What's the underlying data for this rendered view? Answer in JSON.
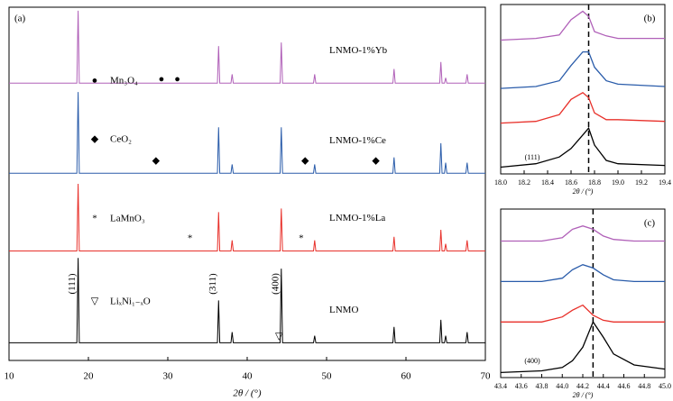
{
  "chart_data": [
    {
      "type": "line",
      "panel_label": "(a)",
      "xlabel": "2θ / (°)",
      "xlim": [
        10,
        70
      ],
      "xticks": [
        10,
        20,
        30,
        40,
        50,
        60,
        70
      ],
      "ylim": [
        0,
        100
      ],
      "x": [
        10,
        18.55,
        18.7,
        18.85,
        36.25,
        36.4,
        36.55,
        37.95,
        38.1,
        38.25,
        44.15,
        44.3,
        44.45,
        48.35,
        48.5,
        48.65,
        58.35,
        58.5,
        58.65,
        64.25,
        64.4,
        64.55,
        64.85,
        65,
        65.15,
        67.55,
        67.7,
        67.85,
        70
      ],
      "series": [
        {
          "name": "LNMO-1%Yb",
          "color": "#b060b8",
          "values": [
            78.5,
            78.5,
            99,
            78.5,
            78.5,
            89,
            78.5,
            78.5,
            81,
            78.5,
            78.5,
            90,
            78.5,
            78.5,
            81,
            78.5,
            78.5,
            82.5,
            78.5,
            78.5,
            84.5,
            78.5,
            78.5,
            80,
            78.5,
            78.5,
            81,
            78.5,
            78.5
          ]
        },
        {
          "name": "LNMO-1%Ce",
          "color": "#2a5caa",
          "values": [
            53,
            53,
            76,
            53,
            53,
            66,
            53,
            53,
            55.5,
            53,
            53,
            66,
            53,
            53,
            55.5,
            53,
            53,
            57.5,
            53,
            53,
            61.5,
            53,
            53,
            56,
            53,
            53,
            56,
            53,
            53
          ]
        },
        {
          "name": "LNMO-1%La",
          "color": "#e8302a",
          "values": [
            31,
            31,
            50,
            31,
            31,
            42,
            31,
            31,
            34,
            31,
            31,
            43,
            31,
            31,
            34,
            31,
            31,
            35,
            31,
            31,
            37,
            31,
            31,
            33,
            31,
            31,
            34,
            31,
            31
          ]
        },
        {
          "name": "LNMO",
          "color": "#000000",
          "values": [
            5,
            5,
            29,
            5,
            5,
            17,
            5,
            5,
            8,
            5,
            5,
            26,
            5,
            5,
            7,
            5,
            5,
            9.5,
            5,
            5,
            11.5,
            5,
            5,
            7,
            5,
            5,
            8,
            5,
            5
          ]
        }
      ],
      "phases": [
        {
          "symbol": "●",
          "name": "Mn₃O₄",
          "positions": [
            29.2,
            31.2
          ],
          "y": 79.5
        },
        {
          "symbol": "◆",
          "name": "CeO₂",
          "positions": [
            28.5,
            47.3,
            56.2
          ],
          "y": 56.4
        },
        {
          "symbol": "*",
          "name": "LaMnO₃",
          "positions": [
            32.8,
            46.8
          ],
          "y": 34.4
        },
        {
          "symbol": "▽",
          "name": "LiₓNi₁₋ₓO",
          "positions": [
            44
          ],
          "y": 6.7
        }
      ],
      "peak_labels": [
        {
          "text": "(111)",
          "x": 18.7
        },
        {
          "text": "(311)",
          "x": 36.4
        },
        {
          "text": "(400)",
          "x": 44.3
        }
      ]
    },
    {
      "type": "line",
      "panel_label": "(b)",
      "peak_label": "(111)",
      "xlabel": "2θ / (°)",
      "xlim": [
        18,
        19.4
      ],
      "xticks": [
        {
          "value": 18,
          "label": "18.0"
        },
        18.2,
        18.4,
        18.6,
        18.8,
        {
          "value": 19,
          "label": "19.0"
        },
        19.2,
        19.4
      ],
      "ylim": [
        0,
        100
      ],
      "reference_x": 18.75,
      "x": [
        18,
        18.3,
        18.5,
        18.6,
        18.7,
        18.75,
        18.8,
        18.9,
        19,
        19.4
      ],
      "series": [
        {
          "color": "#b060b8",
          "values": [
            79,
            80,
            82,
            91,
            96,
            93,
            84,
            81.5,
            80,
            80
          ]
        },
        {
          "color": "#2a5caa",
          "values": [
            50.5,
            51.6,
            55,
            64,
            72,
            72,
            63,
            55,
            53,
            51.6
          ]
        },
        {
          "color": "#e8302a",
          "values": [
            30,
            31,
            35,
            44,
            48,
            45,
            36,
            32,
            32,
            31
          ]
        },
        {
          "color": "#000000",
          "values": [
            4,
            6,
            10,
            15,
            23,
            27,
            17,
            8,
            6,
            5
          ]
        }
      ]
    },
    {
      "type": "line",
      "panel_label": "(c)",
      "peak_label": "(400)",
      "xlabel": "2θ / (°)",
      "xlim": [
        43.4,
        45
      ],
      "xticks": [
        43.4,
        43.6,
        43.8,
        {
          "value": 44,
          "label": "44.0"
        },
        44.2,
        44.4,
        44.6,
        44.8,
        {
          "value": 45,
          "label": "45.0"
        }
      ],
      "ylim": [
        0,
        100
      ],
      "reference_x": 44.3,
      "x": [
        43.4,
        43.8,
        44,
        44.1,
        44.2,
        44.3,
        44.4,
        44.5,
        44.7,
        45
      ],
      "series": [
        {
          "color": "#b060b8",
          "values": [
            81,
            81,
            83,
            88,
            90,
            88,
            84,
            82,
            81,
            81
          ]
        },
        {
          "color": "#2a5caa",
          "values": [
            57,
            57,
            59,
            64,
            67,
            65,
            61,
            58,
            57,
            57
          ]
        },
        {
          "color": "#e8302a",
          "values": [
            33,
            33,
            36,
            40,
            43,
            37,
            34,
            33,
            33,
            33
          ]
        },
        {
          "color": "#000000",
          "values": [
            3,
            4,
            6,
            10,
            18,
            33,
            24,
            14,
            7.5,
            5
          ]
        }
      ]
    }
  ]
}
